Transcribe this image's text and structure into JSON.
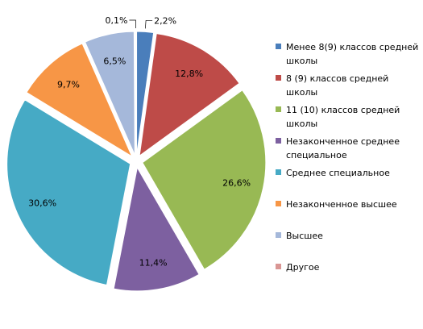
{
  "chart_data": {
    "type": "pie",
    "categories": [
      "Менее 8(9) классов средней школы",
      "8 (9) классов средней школы",
      "11 (10) классов средней школы",
      "Незаконченное среднее специальное",
      "Среднее специальное",
      "Незаконченное высшее",
      "Высшее",
      "Другое"
    ],
    "legend_lines": [
      [
        "Менее 8(9) классов средней",
        "школы"
      ],
      [
        "8 (9) классов средней",
        "школы"
      ],
      [
        "11 (10) классов средней",
        "школы"
      ],
      [
        "Незаконченное среднее",
        "специальное"
      ],
      [
        "Среднее специальное"
      ],
      [
        "Незаконченное высшее"
      ],
      [
        "Высшее"
      ],
      [
        "Другое"
      ]
    ],
    "values": [
      2.2,
      12.8,
      26.6,
      11.4,
      30.6,
      9.7,
      6.5,
      0.1
    ],
    "labels": [
      "2,2%",
      "12,8%",
      "26,6%",
      "11,4%",
      "30,6%",
      "9,7%",
      "6,5%",
      "0,1%"
    ],
    "colors": [
      "#4a7ebb",
      "#be4b48",
      "#98b954",
      "#7d60a0",
      "#46aac5",
      "#f79646",
      "#a5b8da",
      "#d99694"
    ],
    "exploded": true,
    "legend_position": "right"
  }
}
